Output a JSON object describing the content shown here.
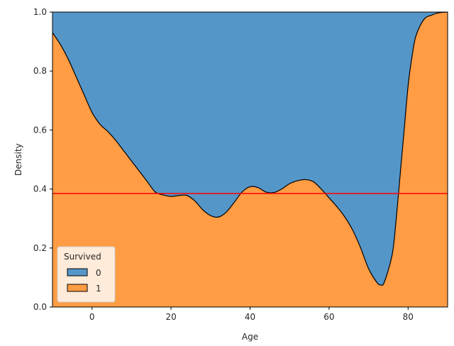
{
  "chart_data": {
    "type": "area",
    "stacked": true,
    "normalized": true,
    "title": "",
    "xlabel": "Age",
    "ylabel": "Density",
    "xlim": [
      -10,
      90
    ],
    "ylim": [
      0.0,
      1.0
    ],
    "xticks": [
      0,
      20,
      40,
      60,
      80
    ],
    "yticks": [
      0.0,
      0.2,
      0.4,
      0.6,
      0.8,
      1.0
    ],
    "xtick_labels": [
      "0",
      "20",
      "40",
      "60",
      "80"
    ],
    "ytick_labels": [
      "0.0",
      "0.2",
      "0.4",
      "0.6",
      "0.8",
      "1.0"
    ],
    "grid": false,
    "x": [
      -10,
      -8,
      -6,
      -4,
      -2,
      0,
      2,
      4,
      6,
      8,
      10,
      12,
      14,
      16,
      18,
      20,
      22,
      24,
      26,
      28,
      30,
      32,
      34,
      36,
      38,
      40,
      42,
      44,
      46,
      48,
      50,
      52,
      54,
      56,
      58,
      60,
      62,
      64,
      66,
      68,
      70,
      72,
      73,
      74,
      76,
      77,
      78,
      79,
      80,
      81,
      82,
      84,
      86,
      88,
      90
    ],
    "series": [
      {
        "name": "1",
        "color": "#ff9c44",
        "values": [
          0.93,
          0.89,
          0.84,
          0.78,
          0.72,
          0.66,
          0.62,
          0.595,
          0.565,
          0.53,
          0.495,
          0.46,
          0.425,
          0.39,
          0.38,
          0.375,
          0.378,
          0.378,
          0.36,
          0.33,
          0.31,
          0.305,
          0.322,
          0.355,
          0.39,
          0.408,
          0.405,
          0.39,
          0.388,
          0.4,
          0.418,
          0.428,
          0.432,
          0.425,
          0.4,
          0.37,
          0.34,
          0.305,
          0.26,
          0.2,
          0.13,
          0.085,
          0.075,
          0.085,
          0.18,
          0.3,
          0.45,
          0.6,
          0.75,
          0.85,
          0.92,
          0.975,
          0.99,
          0.998,
          1.0
        ]
      },
      {
        "name": "0",
        "color": "#5596c8",
        "values": [
          0.07,
          0.11,
          0.16,
          0.22,
          0.28,
          0.34,
          0.38,
          0.405,
          0.435,
          0.47,
          0.505,
          0.54,
          0.575,
          0.61,
          0.62,
          0.625,
          0.622,
          0.622,
          0.64,
          0.67,
          0.69,
          0.695,
          0.678,
          0.645,
          0.61,
          0.592,
          0.595,
          0.61,
          0.612,
          0.6,
          0.582,
          0.572,
          0.568,
          0.575,
          0.6,
          0.63,
          0.66,
          0.695,
          0.74,
          0.8,
          0.87,
          0.915,
          0.925,
          0.915,
          0.82,
          0.7,
          0.55,
          0.4,
          0.25,
          0.15,
          0.08,
          0.025,
          0.01,
          0.002,
          0.0
        ]
      }
    ],
    "reference_line": {
      "orientation": "horizontal",
      "y": 0.385,
      "color": "#ff0000"
    },
    "legend": {
      "title": "Survived",
      "placement": "lower-left",
      "entries": [
        {
          "label": "0",
          "color": "#5596c8"
        },
        {
          "label": "1",
          "color": "#ff9c44"
        }
      ]
    }
  }
}
